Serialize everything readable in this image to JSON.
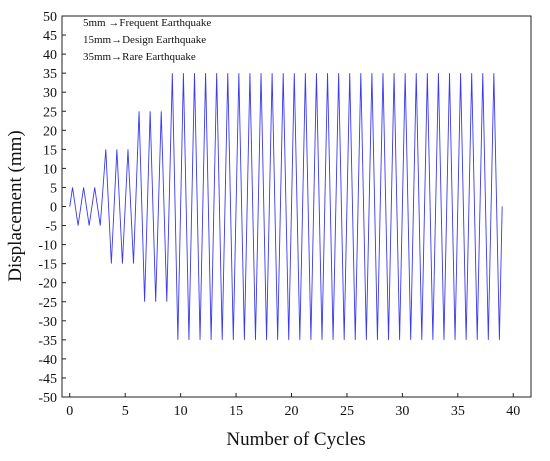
{
  "chart_data": {
    "type": "line",
    "xlabel": "Number of Cycles",
    "ylabel": "Displacement (mm)",
    "xlim": [
      -0.7,
      41.6
    ],
    "ylim": [
      -50,
      50
    ],
    "x_ticks": [
      0,
      5,
      10,
      15,
      20,
      25,
      30,
      35,
      40
    ],
    "y_ticks": [
      50,
      45,
      40,
      35,
      30,
      25,
      20,
      15,
      10,
      5,
      0,
      -5,
      -10,
      -15,
      -20,
      -25,
      -30,
      -35,
      -40,
      -45,
      -50
    ],
    "grid": false,
    "annotations": [
      "5mm  →Frequent Earthquake",
      "15mm→Design Earthquake",
      "35mm→Rare Earthquake"
    ],
    "series": [
      {
        "color": "#3a3af0",
        "points": [
          [
            0.0,
            0
          ],
          [
            0.25,
            5
          ],
          [
            0.75,
            -5
          ],
          [
            1.25,
            5
          ],
          [
            1.75,
            -5
          ],
          [
            2.25,
            5
          ],
          [
            2.75,
            -5
          ],
          [
            3.25,
            15
          ],
          [
            3.75,
            -15
          ],
          [
            4.25,
            15
          ],
          [
            4.75,
            -15
          ],
          [
            5.25,
            15
          ],
          [
            5.75,
            -15
          ],
          [
            6.25,
            25
          ],
          [
            6.75,
            -25
          ],
          [
            7.25,
            25
          ],
          [
            7.75,
            -25
          ],
          [
            8.25,
            25
          ],
          [
            8.75,
            -25
          ],
          [
            9.25,
            35
          ],
          [
            9.75,
            -35
          ],
          [
            10.25,
            35
          ],
          [
            10.75,
            -35
          ],
          [
            11.25,
            35
          ],
          [
            11.75,
            -35
          ],
          [
            12.25,
            35
          ],
          [
            12.75,
            -35
          ],
          [
            13.25,
            35
          ],
          [
            13.75,
            -35
          ],
          [
            14.25,
            35
          ],
          [
            14.75,
            -35
          ],
          [
            15.25,
            35
          ],
          [
            15.75,
            -35
          ],
          [
            16.25,
            35
          ],
          [
            16.75,
            -35
          ],
          [
            17.25,
            35
          ],
          [
            17.75,
            -35
          ],
          [
            18.25,
            35
          ],
          [
            18.75,
            -35
          ],
          [
            19.25,
            35
          ],
          [
            19.75,
            -35
          ],
          [
            20.25,
            35
          ],
          [
            20.75,
            -35
          ],
          [
            21.25,
            35
          ],
          [
            21.75,
            -35
          ],
          [
            22.25,
            35
          ],
          [
            22.75,
            -35
          ],
          [
            23.25,
            35
          ],
          [
            23.75,
            -35
          ],
          [
            24.25,
            35
          ],
          [
            24.75,
            -35
          ],
          [
            25.25,
            35
          ],
          [
            25.75,
            -35
          ],
          [
            26.25,
            35
          ],
          [
            26.75,
            -35
          ],
          [
            27.25,
            35
          ],
          [
            27.75,
            -35
          ],
          [
            28.25,
            35
          ],
          [
            28.75,
            -35
          ],
          [
            29.25,
            35
          ],
          [
            29.75,
            -35
          ],
          [
            30.25,
            35
          ],
          [
            30.75,
            -35
          ],
          [
            31.25,
            35
          ],
          [
            31.75,
            -35
          ],
          [
            32.25,
            35
          ],
          [
            32.75,
            -35
          ],
          [
            33.25,
            35
          ],
          [
            33.75,
            -35
          ],
          [
            34.25,
            35
          ],
          [
            34.75,
            -35
          ],
          [
            35.25,
            35
          ],
          [
            35.75,
            -35
          ],
          [
            36.25,
            35
          ],
          [
            36.75,
            -35
          ],
          [
            37.25,
            35
          ],
          [
            37.75,
            -35
          ],
          [
            38.25,
            35
          ],
          [
            38.75,
            -35
          ],
          [
            39.0,
            0
          ]
        ]
      }
    ]
  }
}
